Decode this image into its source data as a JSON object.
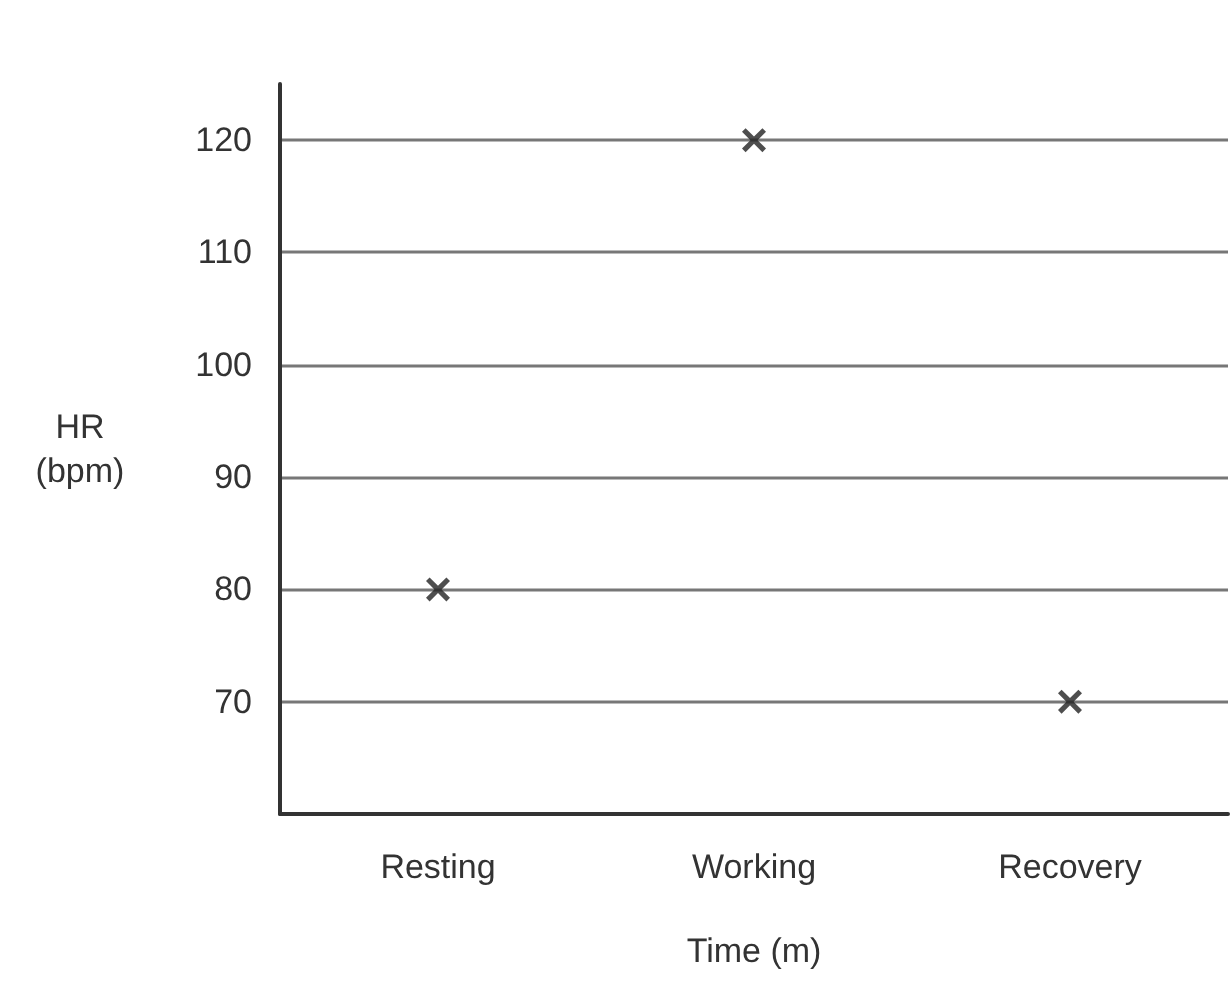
{
  "chart_data": {
    "type": "scatter",
    "xlabel": "Time (m)",
    "ylabel": "HR\n(bpm)",
    "categories": [
      "Resting",
      "Working",
      "Recovery"
    ],
    "series": [
      {
        "color": "#222222",
        "values": [
          80,
          120,
          70
        ]
      }
    ],
    "ylim": [
      60,
      125
    ],
    "yticks": [
      70,
      80,
      90,
      100,
      110,
      120
    ],
    "grid": "y",
    "marker": "cross"
  }
}
